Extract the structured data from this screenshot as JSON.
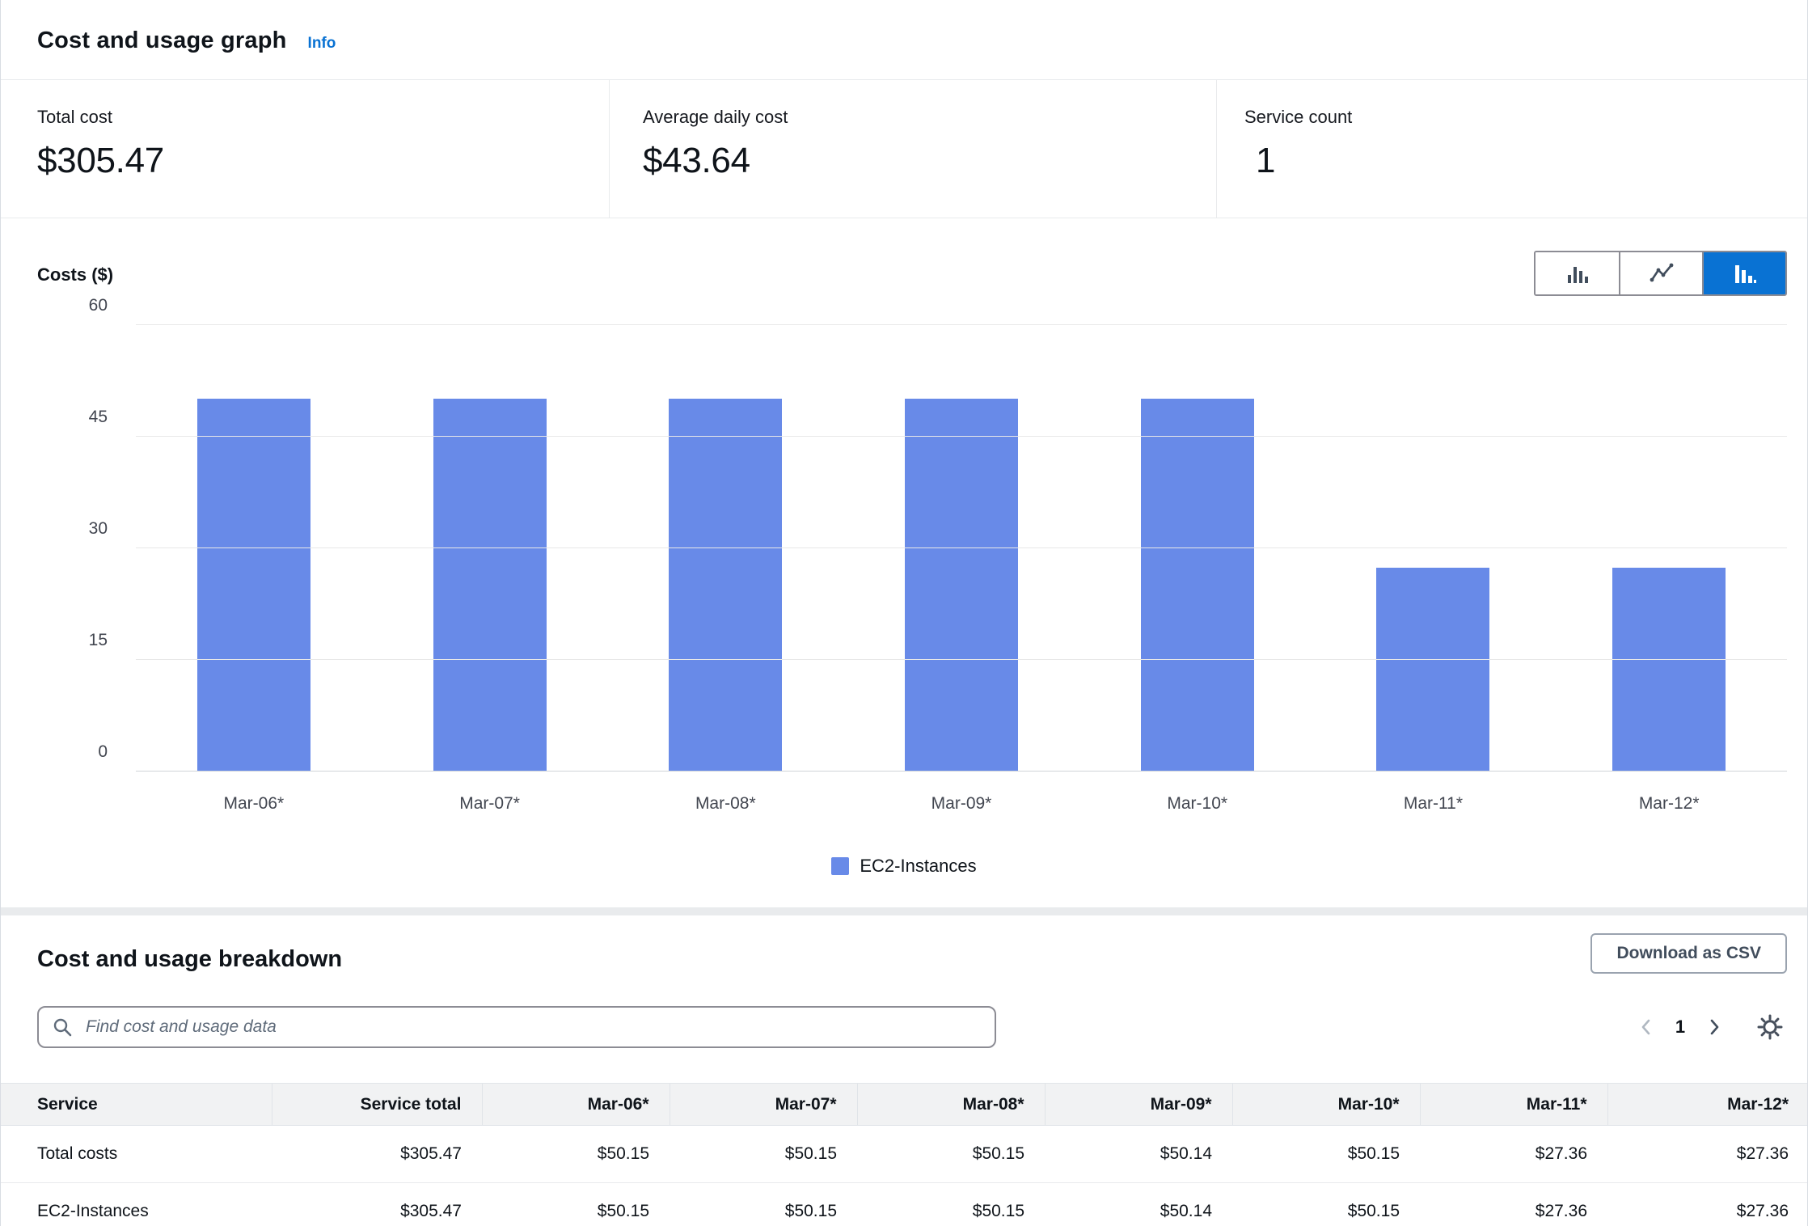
{
  "header": {
    "title": "Cost and usage graph",
    "info_link": "Info"
  },
  "stats": [
    {
      "label": "Total cost",
      "value": "$305.47"
    },
    {
      "label": "Average daily cost",
      "value": "$43.64"
    },
    {
      "label": "Service count",
      "value": "1"
    }
  ],
  "chart": {
    "axis_title": "Costs ($)",
    "toolbar": {
      "buttons": [
        "grouped-bar-chart",
        "line-chart",
        "sorted-bar-chart"
      ],
      "selected_index": 2
    }
  },
  "chart_data": {
    "type": "bar",
    "title": "",
    "xlabel": "",
    "ylabel": "Costs ($)",
    "categories": [
      "Mar-06*",
      "Mar-07*",
      "Mar-08*",
      "Mar-09*",
      "Mar-10*",
      "Mar-11*",
      "Mar-12*"
    ],
    "series": [
      {
        "name": "EC2-Instances",
        "values": [
          50.15,
          50.15,
          50.15,
          50.14,
          50.15,
          27.36,
          27.36
        ]
      }
    ],
    "ylim": [
      0,
      60
    ],
    "yticks": [
      0,
      15,
      30,
      45,
      60
    ],
    "grid": true,
    "legend_position": "bottom",
    "bar_color": "#688ae8"
  },
  "breakdown": {
    "title": "Cost and usage breakdown",
    "download_button": "Download as CSV",
    "search_placeholder": "Find cost and usage data",
    "pagination": {
      "current_page": "1"
    },
    "table": {
      "columns": [
        "Service",
        "Service total",
        "Mar-06*",
        "Mar-07*",
        "Mar-08*",
        "Mar-09*",
        "Mar-10*",
        "Mar-11*",
        "Mar-12*"
      ],
      "rows": [
        {
          "service": "Total costs",
          "values": [
            "$305.47",
            "$50.15",
            "$50.15",
            "$50.15",
            "$50.14",
            "$50.15",
            "$27.36",
            "$27.36"
          ]
        },
        {
          "service": "EC2-Instances",
          "values": [
            "$305.47",
            "$50.15",
            "$50.15",
            "$50.15",
            "$50.14",
            "$50.15",
            "$27.36",
            "$27.36"
          ]
        }
      ]
    }
  },
  "colors": {
    "accent": "#0972d3",
    "bar": "#688ae8"
  }
}
